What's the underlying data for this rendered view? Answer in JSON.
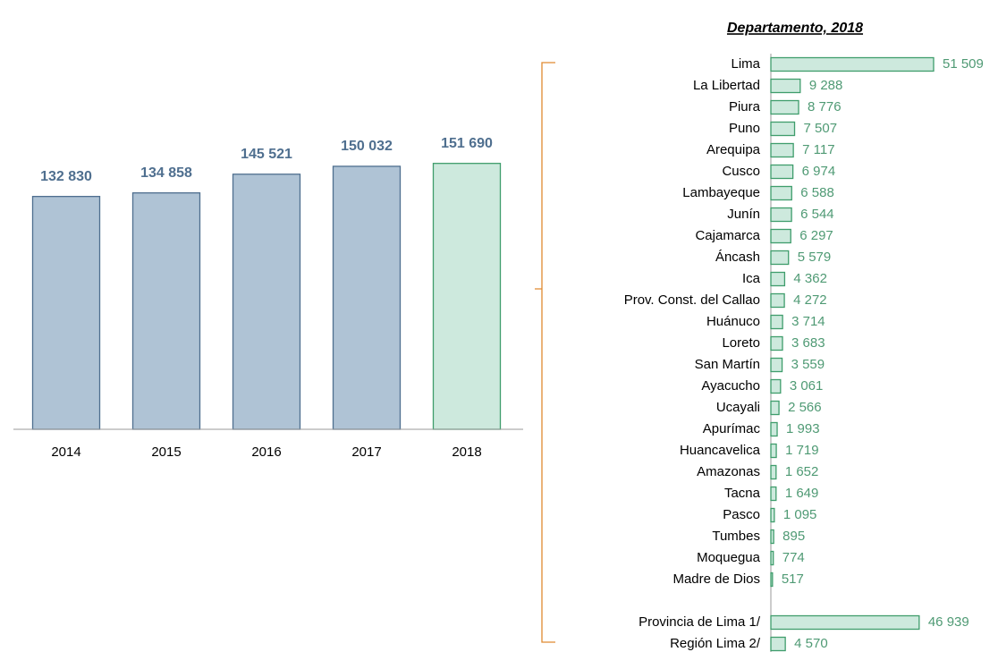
{
  "chart_data": [
    {
      "type": "bar",
      "categories": [
        "2014",
        "2015",
        "2016",
        "2017",
        "2018"
      ],
      "values": [
        132830,
        134858,
        145521,
        150032,
        151690
      ],
      "value_labels": [
        "132 830",
        "134 858",
        "145 521",
        "150 032",
        "151 690"
      ],
      "colors": [
        "#afc3d5",
        "#afc3d5",
        "#afc3d5",
        "#afc3d5",
        "#cde9dd"
      ],
      "edgecolors": [
        "#4f6f8f",
        "#4f6f8f",
        "#4f6f8f",
        "#4f6f8f",
        "#3f9d6c"
      ],
      "ylim": [
        0,
        200000
      ]
    },
    {
      "type": "barh",
      "title": "Departamento, 2018",
      "categories": [
        "Lima",
        "La Libertad",
        "Piura",
        "Puno",
        "Arequipa",
        "Cusco",
        "Lambayeque",
        "Junín",
        "Cajamarca",
        "Áncash",
        "Ica",
        "Prov. Const. del Callao",
        "Huánuco",
        "Loreto",
        "San Martín",
        "Ayacucho",
        "Ucayali",
        "Apurímac",
        "Huancavelica",
        "Amazonas",
        "Tacna",
        "Pasco",
        "Tumbes",
        "Moquegua",
        "Madre de Dios",
        null,
        "Provincia de Lima 1/",
        "Región Lima 2/"
      ],
      "values": [
        51509,
        9288,
        8776,
        7507,
        7117,
        6974,
        6588,
        6544,
        6297,
        5579,
        4362,
        4272,
        3714,
        3683,
        3559,
        3061,
        2566,
        1993,
        1719,
        1652,
        1649,
        1095,
        895,
        774,
        517,
        null,
        46939,
        4570
      ],
      "value_labels": [
        "51 509",
        "9 288",
        "8 776",
        "7 507",
        "7 117",
        "6 974",
        "6 588",
        "6 544",
        "6 297",
        "5 579",
        "4 362",
        "4 272",
        "3 714",
        "3 683",
        "3 559",
        "3 061",
        "2 566",
        "1 993",
        "1 719",
        "1 652",
        "1 649",
        "1 095",
        "895",
        "774",
        "517",
        null,
        "46 939",
        "4 570"
      ],
      "color": "#cde9dd",
      "edgecolor": "#3f9d6c",
      "xlim": [
        0,
        60000
      ]
    }
  ]
}
